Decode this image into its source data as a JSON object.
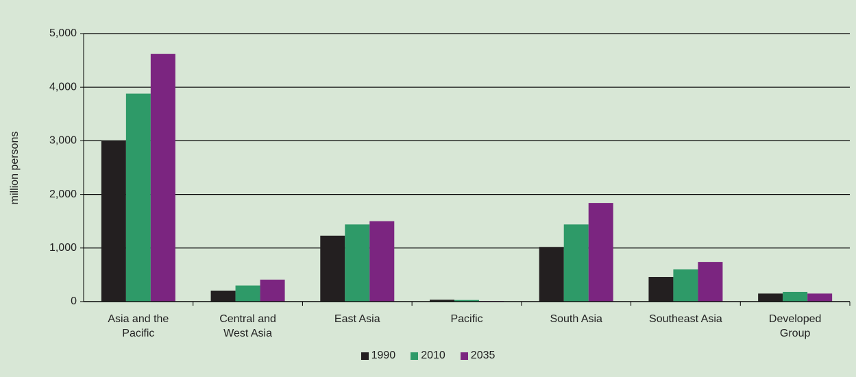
{
  "chart_data": {
    "type": "bar",
    "y_label": "million persons",
    "categories": [
      "Asia and the Pacific",
      "Central and West Asia",
      "East Asia",
      "Pacific",
      "South Asia",
      "Southeast Asia",
      "Developed Group"
    ],
    "series": [
      {
        "name": "1990",
        "color": "#231f20",
        "values": [
          3000,
          205,
          1230,
          35,
          1020,
          460,
          150
        ]
      },
      {
        "name": "2010",
        "color": "#2e9a68",
        "values": [
          3880,
          300,
          1440,
          30,
          1440,
          600,
          180
        ]
      },
      {
        "name": "2035",
        "color": "#7b2580",
        "values": [
          4620,
          410,
          1500,
          10,
          1840,
          740,
          150
        ]
      }
    ],
    "ylim": [
      0,
      5000
    ],
    "yticks": [
      0,
      {
        "value": 1000,
        "label": "1,000"
      },
      {
        "value": 2000,
        "label": "2,000"
      },
      {
        "value": 3000,
        "label": "3,000"
      },
      {
        "value": 4000,
        "label": "4,000"
      },
      {
        "value": 5000,
        "label": "5,000"
      }
    ],
    "grid": true,
    "legend": "bottom"
  }
}
